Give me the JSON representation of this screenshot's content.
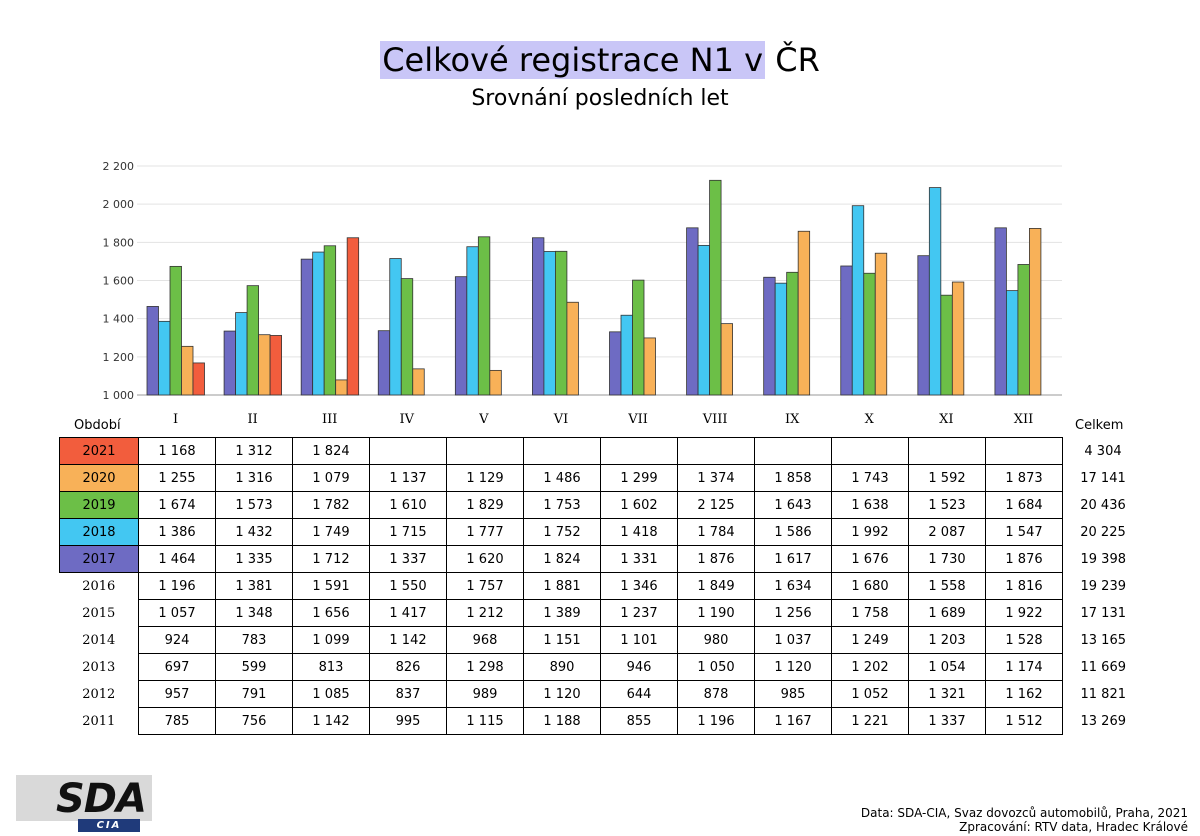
{
  "title_highlighted": "Celkové registrace N1 v",
  "title_rest": " ČR",
  "subtitle": "Srovnání posledních let",
  "colors": {
    "2021": "#f25d3d",
    "2020": "#f8b158",
    "2019": "#6cbf47",
    "2018": "#43c7f2",
    "2017": "#6e6bc3"
  },
  "table": {
    "header_label": "Období",
    "total_label": "Celkem",
    "rows": [
      {
        "year": "2021",
        "cells": [
          "1 168",
          "1 312",
          "1 824",
          "",
          "",
          "",
          "",
          "",
          "",
          "",
          "",
          ""
        ],
        "total": "4 304"
      },
      {
        "year": "2020",
        "cells": [
          "1 255",
          "1 316",
          "1 079",
          "1 137",
          "1 129",
          "1 486",
          "1 299",
          "1 374",
          "1 858",
          "1 743",
          "1 592",
          "1 873"
        ],
        "total": "17 141"
      },
      {
        "year": "2019",
        "cells": [
          "1 674",
          "1 573",
          "1 782",
          "1 610",
          "1 829",
          "1 753",
          "1 602",
          "2 125",
          "1 643",
          "1 638",
          "1 523",
          "1 684"
        ],
        "total": "20 436"
      },
      {
        "year": "2018",
        "cells": [
          "1 386",
          "1 432",
          "1 749",
          "1 715",
          "1 777",
          "1 752",
          "1 418",
          "1 784",
          "1 586",
          "1 992",
          "2 087",
          "1 547"
        ],
        "total": "20 225"
      },
      {
        "year": "2017",
        "cells": [
          "1 464",
          "1 335",
          "1 712",
          "1 337",
          "1 620",
          "1 824",
          "1 331",
          "1 876",
          "1 617",
          "1 676",
          "1 730",
          "1 876"
        ],
        "total": "19 398"
      },
      {
        "year": "2016",
        "cells": [
          "1 196",
          "1 381",
          "1 591",
          "1 550",
          "1 757",
          "1 881",
          "1 346",
          "1 849",
          "1 634",
          "1 680",
          "1 558",
          "1 816"
        ],
        "total": "19 239"
      },
      {
        "year": "2015",
        "cells": [
          "1 057",
          "1 348",
          "1 656",
          "1 417",
          "1 212",
          "1 389",
          "1 237",
          "1 190",
          "1 256",
          "1 758",
          "1 689",
          "1 922"
        ],
        "total": "17 131"
      },
      {
        "year": "2014",
        "cells": [
          "924",
          "783",
          "1 099",
          "1 142",
          "968",
          "1 151",
          "1 101",
          "980",
          "1 037",
          "1 249",
          "1 203",
          "1 528"
        ],
        "total": "13 165"
      },
      {
        "year": "2013",
        "cells": [
          "697",
          "599",
          "813",
          "826",
          "1 298",
          "890",
          "946",
          "1 050",
          "1 120",
          "1 202",
          "1 054",
          "1 174"
        ],
        "total": "11 669"
      },
      {
        "year": "2012",
        "cells": [
          "957",
          "791",
          "1 085",
          "837",
          "989",
          "1 120",
          "644",
          "878",
          "985",
          "1 052",
          "1 321",
          "1 162"
        ],
        "total": "11 821"
      },
      {
        "year": "2011",
        "cells": [
          "785",
          "756",
          "1 142",
          "995",
          "1 115",
          "1 188",
          "855",
          "1 196",
          "1 167",
          "1 221",
          "1 337",
          "1 512"
        ],
        "total": "13 269"
      }
    ]
  },
  "chart_data": {
    "type": "bar",
    "categories": [
      "I",
      "II",
      "III",
      "IV",
      "V",
      "VI",
      "VII",
      "VIII",
      "IX",
      "X",
      "XI",
      "XII"
    ],
    "ylim": [
      1000,
      2200
    ],
    "yticks": [
      1000,
      1200,
      1400,
      1600,
      1800,
      2000,
      2200
    ],
    "ytick_labels": [
      "1 000",
      "1 200",
      "1 400",
      "1 600",
      "1 800",
      "2 000",
      "2 200"
    ],
    "grid": true,
    "series": [
      {
        "name": "2017",
        "values": [
          1464,
          1335,
          1712,
          1337,
          1620,
          1824,
          1331,
          1876,
          1617,
          1676,
          1730,
          1876
        ]
      },
      {
        "name": "2018",
        "values": [
          1386,
          1432,
          1749,
          1715,
          1777,
          1752,
          1418,
          1784,
          1586,
          1992,
          2087,
          1547
        ]
      },
      {
        "name": "2019",
        "values": [
          1674,
          1573,
          1782,
          1610,
          1829,
          1753,
          1602,
          2125,
          1643,
          1638,
          1523,
          1684
        ]
      },
      {
        "name": "2020",
        "values": [
          1255,
          1316,
          1079,
          1137,
          1129,
          1486,
          1299,
          1374,
          1858,
          1743,
          1592,
          1873
        ]
      },
      {
        "name": "2021",
        "values": [
          1168,
          1312,
          1824,
          null,
          null,
          null,
          null,
          null,
          null,
          null,
          null,
          null
        ]
      }
    ]
  },
  "logo": {
    "main": "SDA",
    "sub": "CIA"
  },
  "source": {
    "line1": "Data: SDA-CIA, Svaz dovozců automobilů, Praha, 2021",
    "line2": "Zpracování: RTV data, Hradec Králové"
  }
}
